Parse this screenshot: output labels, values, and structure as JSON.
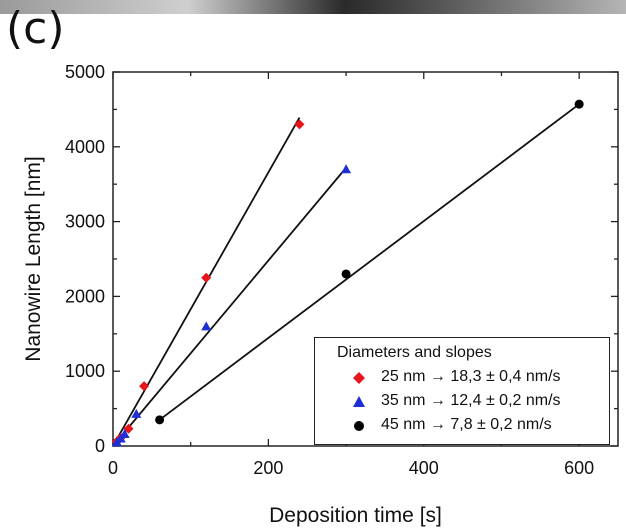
{
  "panel_label": "(c)",
  "chart_data": {
    "type": "scatter",
    "title": "",
    "xlabel": "Deposition time [s]",
    "ylabel": "Nanowire Length [nm]",
    "xlim": [
      0,
      650
    ],
    "ylim": [
      0,
      5000
    ],
    "xticks": [
      0,
      200,
      400,
      600
    ],
    "yticks": [
      0,
      1000,
      2000,
      3000,
      4000,
      5000
    ],
    "grid": false,
    "legend": {
      "title": "Diameters and slopes",
      "placement": "bottom-right"
    },
    "series": [
      {
        "name": "25 nm → 18,3  ± 0,4 nm/s",
        "color": "#e8141c",
        "marker": "diamond",
        "x": [
          5,
          10,
          20,
          40,
          120,
          240
        ],
        "y": [
          60,
          110,
          230,
          800,
          2250,
          4300
        ],
        "fit": {
          "x": [
            0,
            240
          ],
          "y": [
            0,
            4390
          ]
        }
      },
      {
        "name": "35 nm → 12,4  ± 0,2 nm/s",
        "color": "#1f2fd6",
        "marker": "triangle",
        "x": [
          5,
          10,
          15,
          30,
          120,
          300
        ],
        "y": [
          50,
          100,
          160,
          430,
          1600,
          3700
        ],
        "fit": {
          "x": [
            0,
            300
          ],
          "y": [
            0,
            3720
          ]
        }
      },
      {
        "name": "45 nm → 7,8 ± 0,2 nm/s",
        "color": "#000000",
        "marker": "circle",
        "x": [
          60,
          300,
          600
        ],
        "y": [
          350,
          2300,
          4570
        ],
        "fit": {
          "x": [
            60,
            600
          ],
          "y": [
            350,
            4570
          ]
        }
      }
    ]
  }
}
